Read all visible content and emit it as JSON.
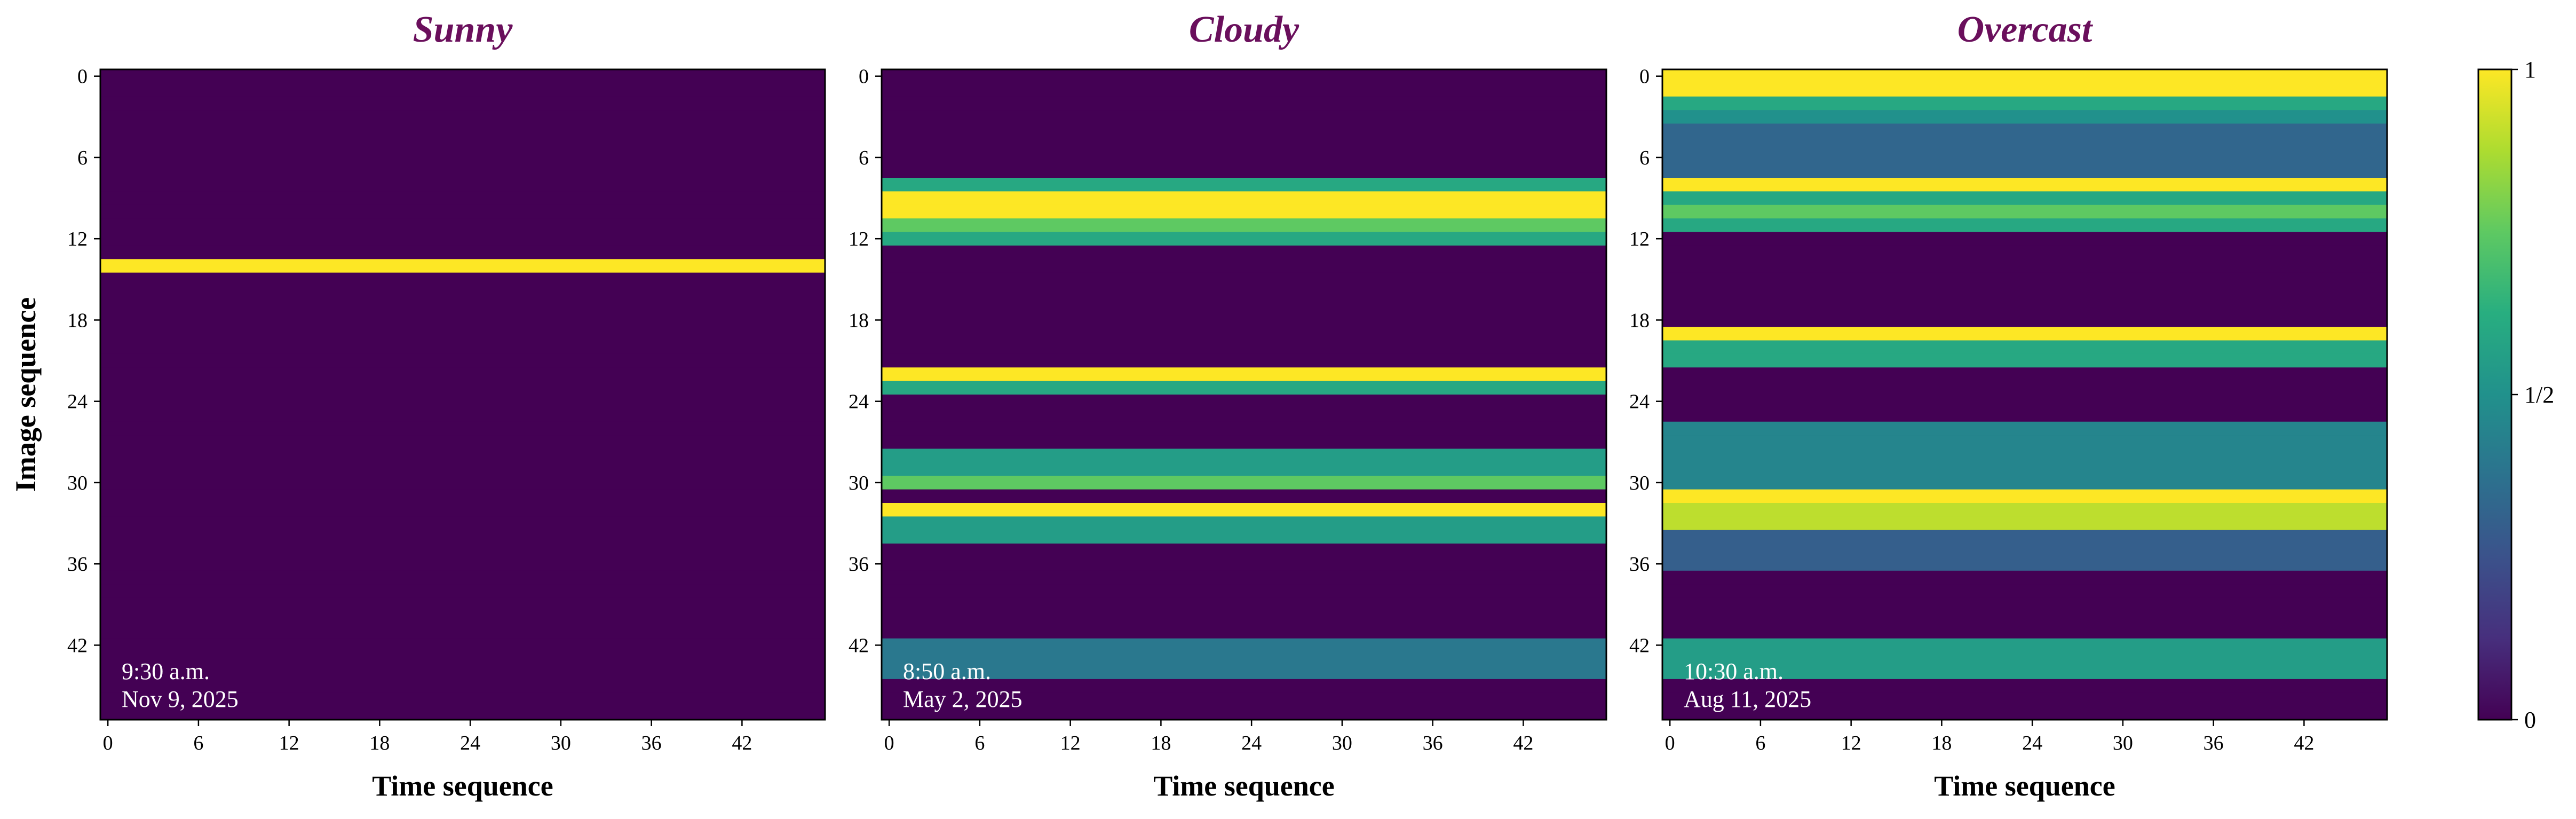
{
  "figure": {
    "ylabel": "Image sequence",
    "colorbar": {
      "tick_labels": [
        "0",
        "1/2",
        "1"
      ],
      "ticks": [
        0,
        0.5,
        1
      ],
      "colormap": "viridis"
    }
  },
  "chart_data": [
    {
      "type": "heatmap",
      "title": "Sunny",
      "title_color": "#6a0f5c",
      "xlabel": "Time sequence",
      "ylabel": "Image sequence",
      "x_ticks": [
        0,
        6,
        12,
        18,
        24,
        30,
        36,
        42
      ],
      "y_ticks": [
        0,
        6,
        12,
        18,
        24,
        30,
        36,
        42
      ],
      "n_rows": 48,
      "n_cols": 48,
      "value_range": [
        0,
        1
      ],
      "annotation": [
        "9:30 a.m.",
        "Nov 9, 2025"
      ],
      "row_values": [
        0,
        0,
        0,
        0,
        0,
        0,
        0,
        0,
        0,
        0,
        0,
        0,
        0,
        0,
        1,
        0,
        0,
        0,
        0,
        0,
        0,
        0,
        0,
        0,
        0,
        0,
        0,
        0,
        0,
        0,
        0,
        0,
        0,
        0,
        0,
        0,
        0,
        0,
        0,
        0,
        0,
        0,
        0,
        0,
        0,
        0,
        0,
        0
      ]
    },
    {
      "type": "heatmap",
      "title": "Cloudy",
      "title_color": "#6a0f5c",
      "xlabel": "Time sequence",
      "ylabel": "",
      "x_ticks": [
        0,
        6,
        12,
        18,
        24,
        30,
        36,
        42
      ],
      "y_ticks": [
        0,
        6,
        12,
        18,
        24,
        30,
        36,
        42
      ],
      "n_rows": 48,
      "n_cols": 48,
      "value_range": [
        0,
        1
      ],
      "annotation": [
        "8:50 a.m.",
        "May 2, 2025"
      ],
      "row_values": [
        0,
        0,
        0,
        0,
        0,
        0,
        0,
        0,
        0.6,
        1,
        1,
        0.75,
        0.6,
        0,
        0,
        0,
        0,
        0,
        0,
        0,
        0,
        0,
        1,
        0.6,
        0,
        0,
        0,
        0,
        0.55,
        0.55,
        0.75,
        0,
        1,
        0.55,
        0.55,
        0,
        0,
        0,
        0,
        0,
        0,
        0,
        0.4,
        0.4,
        0.4,
        0,
        0,
        0
      ]
    },
    {
      "type": "heatmap",
      "title": "Overcast",
      "title_color": "#6a0f5c",
      "xlabel": "Time sequence",
      "ylabel": "",
      "x_ticks": [
        0,
        6,
        12,
        18,
        24,
        30,
        36,
        42
      ],
      "y_ticks": [
        0,
        6,
        12,
        18,
        24,
        30,
        36,
        42
      ],
      "n_rows": 48,
      "n_cols": 48,
      "value_range": [
        0,
        1
      ],
      "annotation": [
        "10:30 a.m.",
        "Aug 11, 2025"
      ],
      "row_values": [
        1,
        1,
        0.6,
        0.5,
        0.33,
        0.33,
        0.33,
        0.33,
        1,
        0.6,
        0.75,
        0.6,
        0,
        0,
        0,
        0,
        0,
        0,
        0,
        1,
        0.6,
        0.6,
        0,
        0,
        0,
        0,
        0.45,
        0.45,
        0.45,
        0.45,
        0.45,
        1,
        0.9,
        0.9,
        0.3,
        0.3,
        0.3,
        0,
        0,
        0,
        0,
        0,
        0.55,
        0.55,
        0.55,
        0,
        0,
        0
      ]
    }
  ]
}
